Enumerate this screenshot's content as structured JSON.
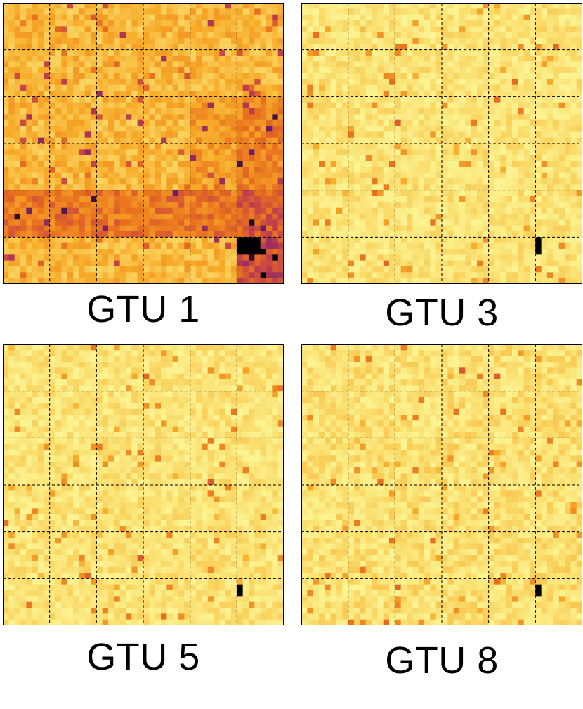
{
  "chart_data": [
    {
      "type": "heatmap",
      "title": "GTU 1",
      "grid": true,
      "colormap": "inferno_r",
      "shape": [
        48,
        48
      ],
      "ec_blocks": [
        6,
        6
      ],
      "background_level": 0.4,
      "dim_region": "bottom-right EC, rows 41-47 cols 43-47",
      "hot_region": "rows 41-43, cols 42-45",
      "hot_level": 1.0
    },
    {
      "type": "heatmap",
      "title": "GTU 3",
      "grid": true,
      "colormap": "inferno_r",
      "shape": [
        48,
        48
      ],
      "ec_blocks": [
        6,
        6
      ],
      "background_level": 0.18,
      "hot_region": "rows 40-42, col 42",
      "hot_level": 1.0
    },
    {
      "type": "heatmap",
      "title": "GTU 5",
      "grid": true,
      "colormap": "inferno_r",
      "shape": [
        48,
        48
      ],
      "ec_blocks": [
        6,
        6
      ],
      "background_level": 0.17,
      "hot_region": "rows 41-42, col 42",
      "hot_level": 1.0
    },
    {
      "type": "heatmap",
      "title": "GTU 8",
      "grid": true,
      "colormap": "inferno_r",
      "shape": [
        48,
        48
      ],
      "ec_blocks": [
        6,
        6
      ],
      "background_level": 0.19,
      "hot_region": "rows 41-42, col 42",
      "hot_level": 1.0
    }
  ]
}
